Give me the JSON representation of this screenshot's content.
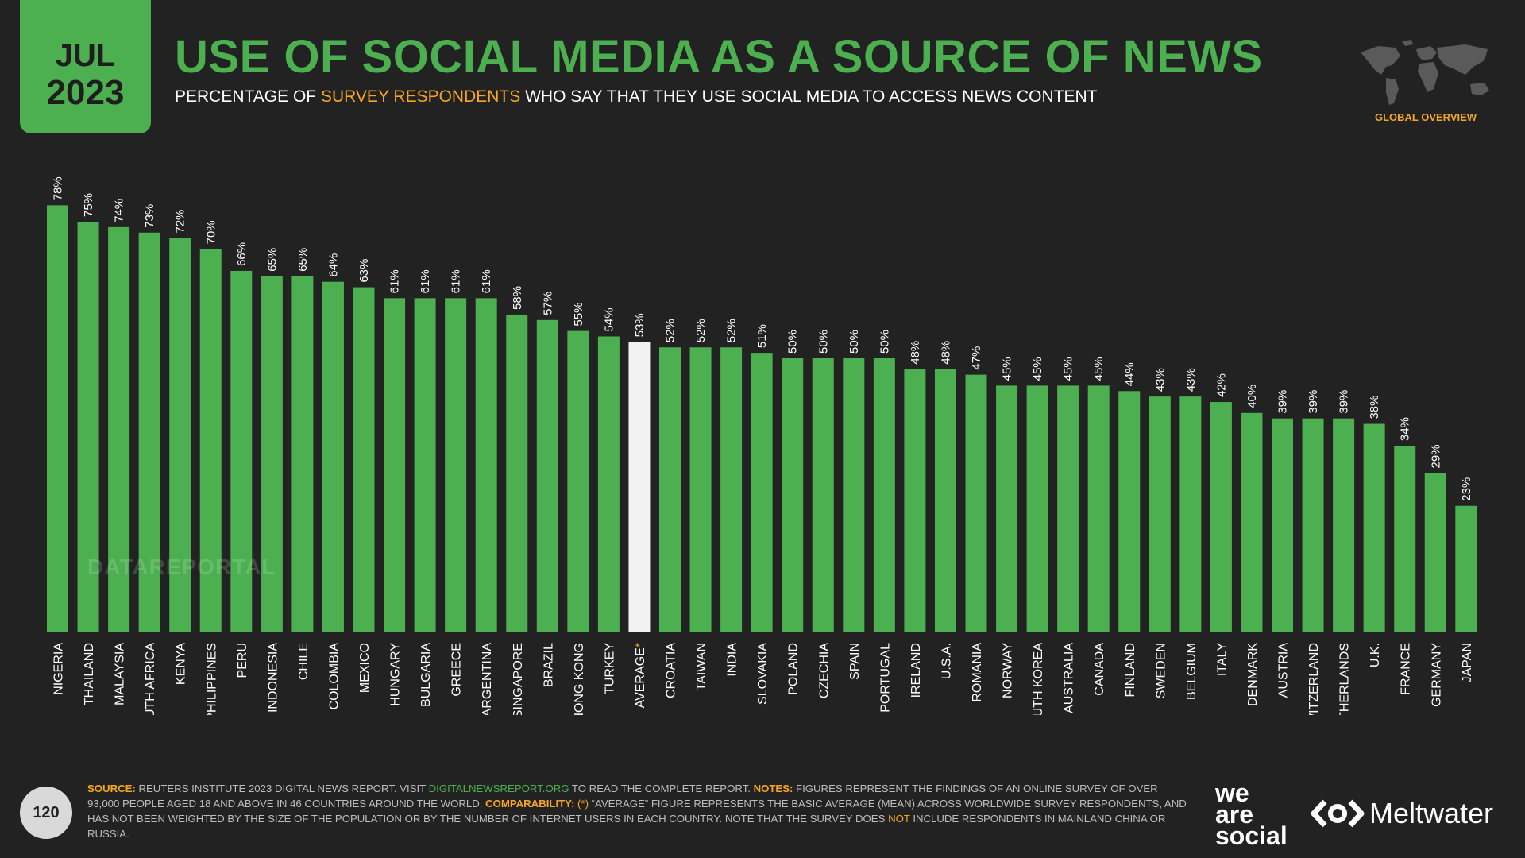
{
  "badge": {
    "month": "JUL",
    "year": "2023"
  },
  "header": {
    "title": "USE OF SOCIAL MEDIA AS A SOURCE OF NEWS",
    "subtitle_pre": "PERCENTAGE OF ",
    "subtitle_highlight": "SURVEY RESPONDENTS",
    "subtitle_post": " WHO SAY THAT THEY USE SOCIAL MEDIA TO ACCESS NEWS CONTENT",
    "region_label": "GLOBAL OVERVIEW"
  },
  "watermark": "DATAREPORTAL",
  "colors": {
    "bar": "#4caf50",
    "highlight_bar": "#f2f2f2",
    "background": "#222222",
    "accent": "#f5a623"
  },
  "chart_data": {
    "type": "bar",
    "title": "USE OF SOCIAL MEDIA AS A SOURCE OF NEWS",
    "categories": [
      "NIGERIA",
      "THAILAND",
      "MALAYSIA",
      "SOUTH AFRICA",
      "KENYA",
      "PHILIPPINES",
      "PERU",
      "INDONESIA",
      "CHILE",
      "COLOMBIA",
      "MEXICO",
      "HUNGARY",
      "BULGARIA",
      "GREECE",
      "ARGENTINA",
      "SINGAPORE",
      "BRAZIL",
      "HONG KONG",
      "TURKEY",
      "AVERAGE*",
      "CROATIA",
      "TAIWAN",
      "INDIA",
      "SLOVAKIA",
      "POLAND",
      "CZECHIA",
      "SPAIN",
      "PORTUGAL",
      "IRELAND",
      "U.S.A.",
      "ROMANIA",
      "NORWAY",
      "SOUTH KOREA",
      "AUSTRALIA",
      "CANADA",
      "FINLAND",
      "SWEDEN",
      "BELGIUM",
      "ITALY",
      "DENMARK",
      "AUSTRIA",
      "SWITZERLAND",
      "NETHERLANDS",
      "U.K.",
      "FRANCE",
      "GERMANY",
      "JAPAN"
    ],
    "values": [
      78,
      75,
      74,
      73,
      72,
      70,
      66,
      65,
      65,
      64,
      63,
      61,
      61,
      61,
      61,
      58,
      57,
      55,
      54,
      53,
      52,
      52,
      52,
      51,
      50,
      50,
      50,
      50,
      48,
      48,
      47,
      45,
      45,
      45,
      45,
      44,
      43,
      43,
      42,
      40,
      39,
      39,
      39,
      38,
      34,
      29,
      23
    ],
    "value_labels": [
      "78%",
      "75%",
      "74%",
      "73%",
      "72%",
      "70%",
      "66%",
      "65%",
      "65%",
      "64%",
      "63%",
      "61%",
      "61%",
      "61%",
      "61%",
      "58%",
      "57%",
      "55%",
      "54%",
      "53%",
      "52%",
      "52%",
      "52%",
      "51%",
      "50%",
      "50%",
      "50%",
      "50%",
      "48%",
      "48%",
      "47%",
      "45%",
      "45%",
      "45%",
      "45%",
      "44%",
      "43%",
      "43%",
      "42%",
      "40%",
      "39%",
      "39%",
      "39%",
      "38%",
      "34%",
      "29%",
      "23%"
    ],
    "highlight_category": "AVERAGE*",
    "ylim": [
      0,
      80
    ],
    "grid": false,
    "legend": "none"
  },
  "footer": {
    "page_number": "120",
    "source_label": "SOURCE:",
    "source_text_1": " REUTERS INSTITUTE 2023 DIGITAL NEWS REPORT. VISIT ",
    "source_link": "DIGITALNEWSREPORT.ORG",
    "source_text_2": " TO READ THE COMPLETE REPORT. ",
    "notes_label": "NOTES:",
    "notes_text": " FIGURES REPRESENT THE FINDINGS OF AN ONLINE SURVEY OF OVER 93,000 PEOPLE AGED 18 AND ABOVE IN 46 COUNTRIES AROUND THE WORLD. ",
    "comp_label": "COMPARABILITY:",
    "comp_marker": " (*)",
    "comp_text_1": " “AVERAGE” FIGURE REPRESENTS THE BASIC AVERAGE (MEAN) ACROSS WORLDWIDE SURVEY RESPONDENTS, AND HAS NOT BEEN WEIGHTED BY THE SIZE OF THE POPULATION OR BY THE NUMBER OF INTERNET USERS IN EACH COUNTRY. NOTE THAT THE SURVEY DOES ",
    "comp_not": "NOT",
    "comp_text_2": " INCLUDE RESPONDENTS IN MAINLAND CHINA OR RUSSIA.",
    "brand_1_line1": "we",
    "brand_1_line2": "are",
    "brand_1_line3": "social",
    "brand_2": "Meltwater"
  }
}
